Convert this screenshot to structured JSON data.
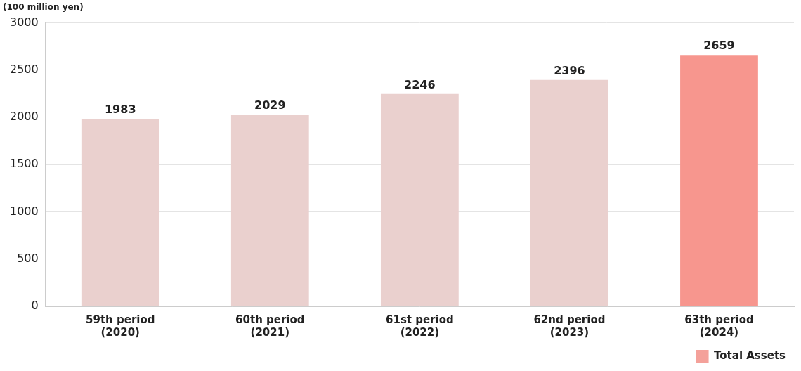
{
  "chart_data": {
    "type": "bar",
    "ylabel": "(100 million yen)",
    "categories": [
      [
        "59th period",
        "(2020)"
      ],
      [
        "60th period",
        "(2021)"
      ],
      [
        "61st period",
        "(2022)"
      ],
      [
        "62nd period",
        "(2023)"
      ],
      [
        "63th period",
        "(2024)"
      ]
    ],
    "series": [
      {
        "name": "Total Assets",
        "color": "#f4a19a",
        "values": [
          1983,
          2029,
          2246,
          2396,
          2659
        ],
        "colors": [
          "#ead0ce",
          "#ead0ce",
          "#ead0ce",
          "#ead0ce",
          "#f7968e"
        ]
      }
    ],
    "ylim": [
      0,
      3000
    ],
    "yticks": [
      0,
      500,
      1000,
      1500,
      2000,
      2500,
      3000
    ],
    "grid": true,
    "data_labels": true,
    "legend": "lower right"
  }
}
